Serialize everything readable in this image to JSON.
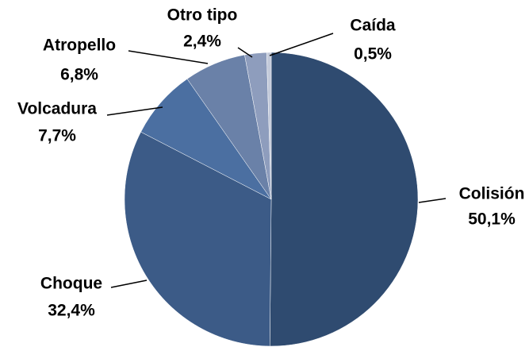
{
  "chart_data": {
    "type": "pie",
    "categories": [
      "Colisión",
      "Choque",
      "Volcadura",
      "Atropello",
      "Otro tipo",
      "Caída"
    ],
    "values": [
      50.1,
      32.4,
      7.7,
      6.8,
      2.4,
      0.5
    ],
    "value_labels": [
      "50,1%",
      "32,4%",
      "7,7%",
      "6,8%",
      "2,4%",
      "0,5%"
    ],
    "colors": [
      "#2f4b70",
      "#3c5b87",
      "#4b6fa1",
      "#6a81a8",
      "#8e9dbd",
      "#c3cada"
    ]
  }
}
